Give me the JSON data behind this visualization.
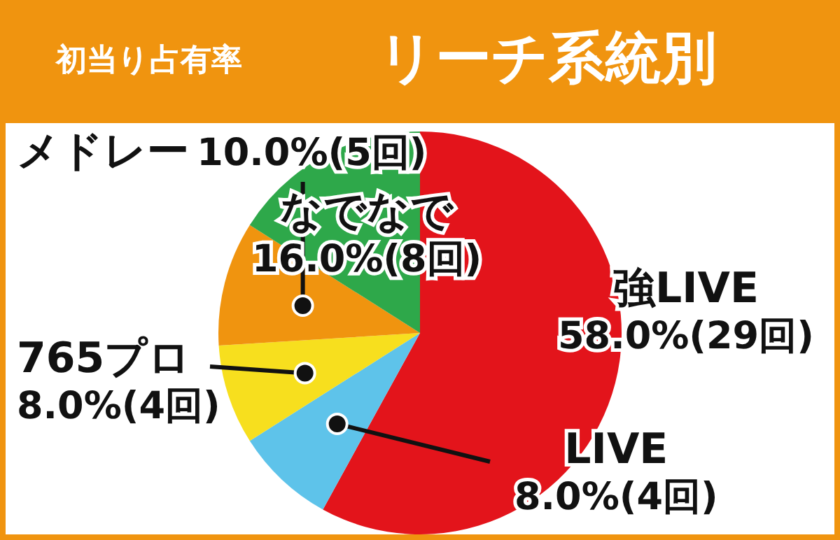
{
  "chart_data": {
    "type": "pie",
    "title": "リーチ系統別",
    "subtitle": "初当り占有率",
    "categories": [
      "強LIVE",
      "LIVE",
      "765プロ",
      "メドレー",
      "なでなで"
    ],
    "values": [
      58,
      8,
      8,
      10,
      16
    ],
    "value_labels": [
      "58.0%(29回)",
      "8.0%(4回)",
      "8.0%(4回)",
      "10.0%(5回)",
      "16.0%(8回)"
    ],
    "colors": [
      "#e3141b",
      "#5ec3ea",
      "#f7df1e",
      "#f0940f",
      "#2ea84a"
    ],
    "legend": false
  }
}
